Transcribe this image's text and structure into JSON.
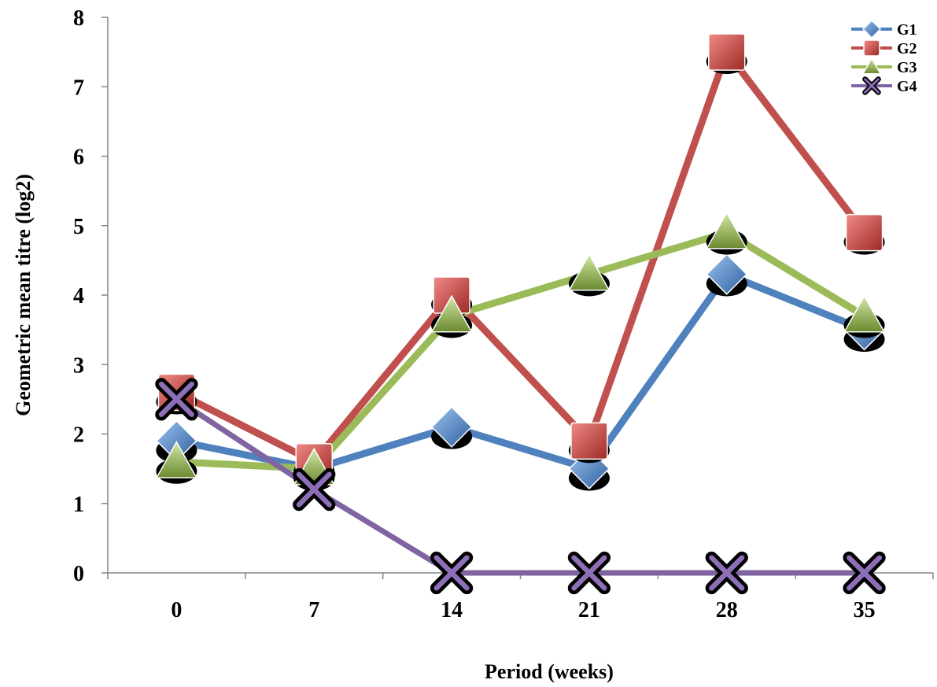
{
  "chart_data": {
    "type": "line",
    "xlabel": "Period (weeks)",
    "ylabel": "Geometric mean titre (log2)",
    "categories": [
      "0",
      "7",
      "14",
      "21",
      "28",
      "35"
    ],
    "ylim": [
      0,
      8
    ],
    "yticks": [
      "0",
      "1",
      "2",
      "3",
      "4",
      "5",
      "6",
      "7",
      "8"
    ],
    "grid": false,
    "legend_position": "top-right",
    "series": [
      {
        "name": "G1",
        "color": "#4f81bd",
        "marker": "diamond",
        "values": [
          1.9,
          1.5,
          2.1,
          1.5,
          4.3,
          3.5
        ]
      },
      {
        "name": "G2",
        "color": "#c0504d",
        "marker": "square",
        "values": [
          2.6,
          1.6,
          4.0,
          1.9,
          7.5,
          4.9
        ]
      },
      {
        "name": "G3",
        "color": "#9bbb59",
        "marker": "triangle",
        "values": [
          1.6,
          1.5,
          3.7,
          4.3,
          4.9,
          3.7
        ]
      },
      {
        "name": "G4",
        "color": "#8064a2",
        "marker": "x",
        "values": [
          2.5,
          1.2,
          0,
          0,
          0,
          0
        ]
      }
    ]
  }
}
